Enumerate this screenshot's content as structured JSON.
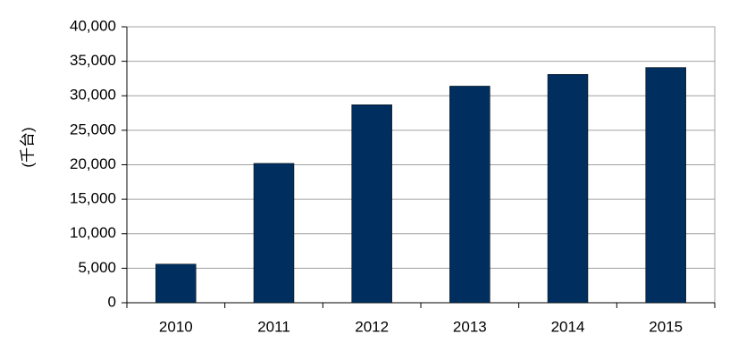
{
  "chart_data": {
    "type": "bar",
    "y_label": "(千台)",
    "categories": [
      "2010",
      "2011",
      "2012",
      "2013",
      "2014",
      "2015"
    ],
    "values": [
      5600,
      20200,
      28700,
      31400,
      33100,
      34100
    ],
    "color": "#002f5f",
    "ylim": [
      0,
      40000
    ],
    "yticks": [
      0,
      {
        "value": 5000,
        "label": "5,000"
      },
      {
        "value": 10000,
        "label": "10,000"
      },
      {
        "value": 15000,
        "label": "15,000"
      },
      {
        "value": 20000,
        "label": "20,000"
      },
      {
        "value": 25000,
        "label": "25,000"
      },
      {
        "value": 30000,
        "label": "30,000"
      },
      {
        "value": 35000,
        "label": "35,000"
      },
      {
        "value": 40000,
        "label": "40,000"
      }
    ],
    "grid": true
  }
}
